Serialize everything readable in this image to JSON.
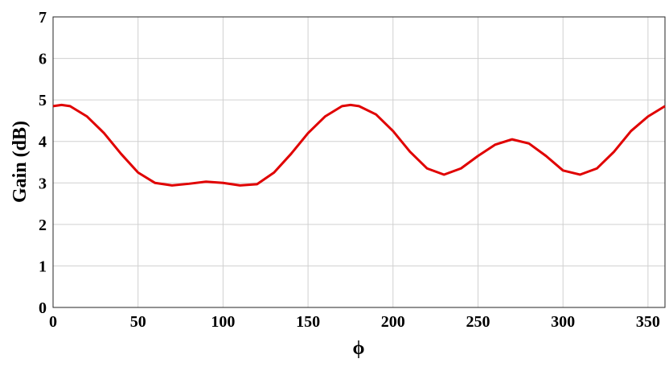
{
  "chart_data": {
    "type": "line",
    "x_label": "ϕ",
    "y_label": "Gain (dB)",
    "x": [
      0,
      5,
      10,
      20,
      30,
      40,
      50,
      60,
      70,
      80,
      90,
      100,
      110,
      120,
      130,
      140,
      150,
      160,
      170,
      175,
      180,
      190,
      200,
      210,
      220,
      230,
      240,
      250,
      260,
      270,
      280,
      290,
      300,
      310,
      320,
      330,
      340,
      350,
      360
    ],
    "series": [
      {
        "color": "#e00000",
        "values": [
          4.85,
          4.88,
          4.85,
          4.6,
          4.2,
          3.7,
          3.25,
          3.0,
          2.94,
          2.98,
          3.03,
          3.0,
          2.94,
          2.97,
          3.25,
          3.7,
          4.2,
          4.6,
          4.85,
          4.88,
          4.85,
          4.65,
          4.25,
          3.75,
          3.35,
          3.2,
          3.35,
          3.65,
          3.92,
          4.05,
          3.95,
          3.65,
          3.3,
          3.2,
          3.35,
          3.75,
          4.25,
          4.6,
          4.85
        ]
      }
    ],
    "xlim": [
      0,
      360
    ],
    "xticks": [
      0,
      50,
      100,
      150,
      200,
      250,
      300,
      350
    ],
    "ylim": [
      0,
      7
    ],
    "yticks": [
      0,
      1,
      2,
      3,
      4,
      5,
      6,
      7
    ],
    "grid": true
  }
}
